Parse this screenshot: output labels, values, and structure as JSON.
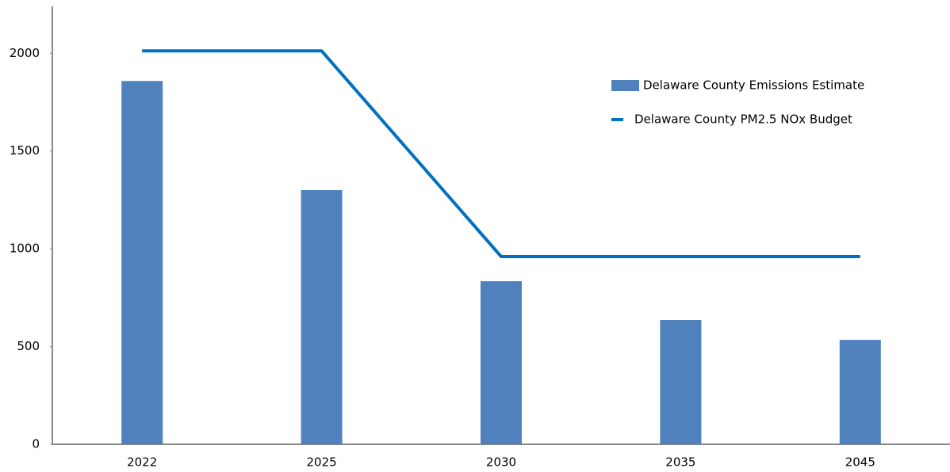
{
  "chart_data": {
    "type": "bar_line",
    "categories": [
      "2022",
      "2025",
      "2030",
      "2035",
      "2045"
    ],
    "series": [
      {
        "name": "Delaware County Emissions Estimate",
        "type": "bar",
        "color": "#4f81bd",
        "values": [
          1858,
          1300,
          834,
          636,
          534
        ]
      },
      {
        "name": "Delaware County PM2.5 NOx Budget",
        "type": "line",
        "color": "#0070c0",
        "values": [
          2012,
          2012,
          960,
          960,
          960
        ]
      }
    ],
    "ylim": [
      0,
      2240
    ],
    "yticks": [
      0,
      500,
      1000,
      1500,
      2000
    ],
    "grid": false,
    "legend": "upper right"
  }
}
